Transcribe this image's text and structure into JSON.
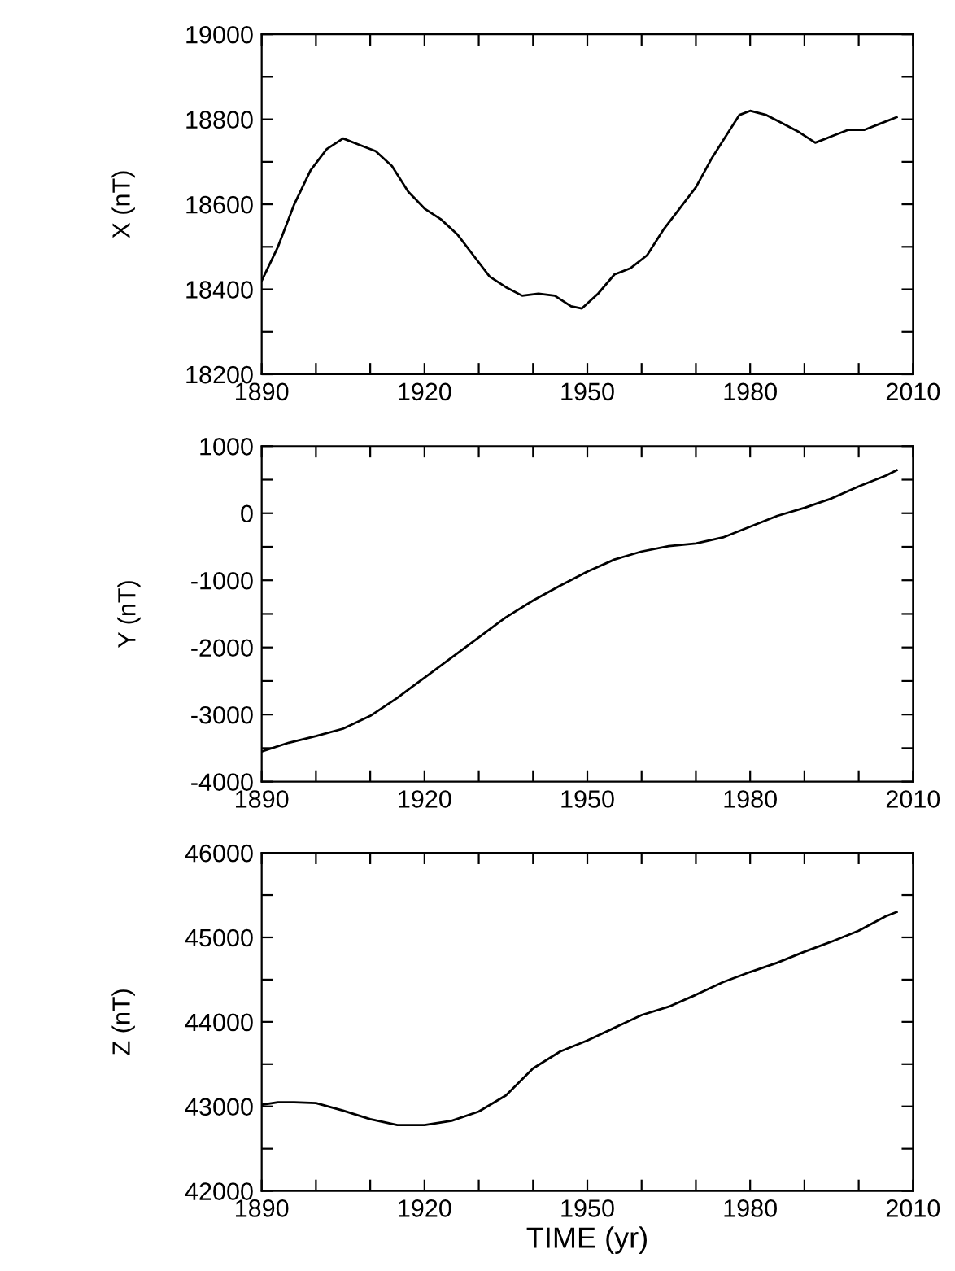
{
  "chart_data": [
    {
      "type": "line",
      "ylabel": "X (nT)",
      "x": [
        1890,
        1893,
        1896,
        1899,
        1902,
        1905,
        1908,
        1911,
        1914,
        1917,
        1920,
        1923,
        1926,
        1929,
        1932,
        1935,
        1938,
        1941,
        1944,
        1947,
        1949,
        1952,
        1955,
        1958,
        1961,
        1964,
        1967,
        1970,
        1973,
        1976,
        1978,
        1980,
        1983,
        1986,
        1989,
        1992,
        1995,
        1998,
        2001,
        2004,
        2007
      ],
      "series": [
        {
          "color": "#000000",
          "values": [
            18420,
            18500,
            18600,
            18680,
            18730,
            18755,
            18740,
            18725,
            18690,
            18630,
            18590,
            18565,
            18530,
            18480,
            18430,
            18405,
            18385,
            18390,
            18385,
            18360,
            18355,
            18390,
            18435,
            18450,
            18480,
            18540,
            18590,
            18640,
            18710,
            18770,
            18810,
            18820,
            18810,
            18790,
            18770,
            18745,
            18760,
            18775,
            18775,
            18790,
            18805
          ]
        }
      ],
      "xlim": [
        1890,
        2010
      ],
      "xticks": [
        1890,
        {
          "value": 1900,
          "label": null
        },
        {
          "value": 1910,
          "label": null
        },
        1920,
        {
          "value": 1930,
          "label": null
        },
        {
          "value": 1940,
          "label": null
        },
        1950,
        {
          "value": 1960,
          "label": null
        },
        {
          "value": 1970,
          "label": null
        },
        1980,
        {
          "value": 1990,
          "label": null
        },
        {
          "value": 2000,
          "label": null
        },
        2010
      ],
      "ylim": [
        18200,
        19000
      ],
      "yticks": [
        18200,
        {
          "value": 18300,
          "label": null
        },
        18400,
        {
          "value": 18500,
          "label": null
        },
        18600,
        {
          "value": 18700,
          "label": null
        },
        18800,
        {
          "value": 18900,
          "label": null
        },
        19000
      ],
      "grid": false,
      "legend": false,
      "marker": "none",
      "line_style": "solid"
    },
    {
      "type": "line",
      "ylabel": "Y (nT)",
      "x": [
        1890,
        1895,
        1900,
        1905,
        1910,
        1915,
        1920,
        1925,
        1930,
        1935,
        1940,
        1945,
        1950,
        1955,
        1960,
        1965,
        1970,
        1975,
        1980,
        1985,
        1990,
        1995,
        2000,
        2005,
        2007
      ],
      "series": [
        {
          "color": "#000000",
          "values": [
            -3550,
            -3420,
            -3320,
            -3210,
            -3020,
            -2750,
            -2450,
            -2150,
            -1850,
            -1550,
            -1300,
            -1080,
            -870,
            -690,
            -570,
            -490,
            -450,
            -360,
            -200,
            -40,
            80,
            220,
            400,
            560,
            640
          ]
        }
      ],
      "xlim": [
        1890,
        2010
      ],
      "xticks": [
        1890,
        {
          "value": 1900,
          "label": null
        },
        {
          "value": 1910,
          "label": null
        },
        1920,
        {
          "value": 1930,
          "label": null
        },
        {
          "value": 1940,
          "label": null
        },
        1950,
        {
          "value": 1960,
          "label": null
        },
        {
          "value": 1970,
          "label": null
        },
        1980,
        {
          "value": 1990,
          "label": null
        },
        {
          "value": 2000,
          "label": null
        },
        2010
      ],
      "ylim": [
        -4000,
        1000
      ],
      "yticks": [
        -4000,
        {
          "value": -3500,
          "label": null
        },
        -3000,
        {
          "value": -2500,
          "label": null
        },
        -2000,
        {
          "value": -1500,
          "label": null
        },
        -1000,
        {
          "value": -500,
          "label": null
        },
        0,
        {
          "value": 500,
          "label": null
        },
        1000
      ],
      "grid": false,
      "legend": false,
      "marker": "none",
      "line_style": "solid"
    },
    {
      "type": "line",
      "ylabel": "Z (nT)",
      "xlabel": "TIME (yr)",
      "x": [
        1890,
        1893,
        1896,
        1900,
        1905,
        1910,
        1915,
        1920,
        1925,
        1930,
        1935,
        1940,
        1945,
        1950,
        1955,
        1960,
        1965,
        1970,
        1975,
        1980,
        1985,
        1990,
        1995,
        2000,
        2005,
        2007
      ],
      "series": [
        {
          "color": "#000000",
          "values": [
            43020,
            43050,
            43050,
            43040,
            42950,
            42850,
            42780,
            42780,
            42830,
            42940,
            43130,
            43450,
            43650,
            43780,
            43930,
            44080,
            44180,
            44320,
            44470,
            44590,
            44700,
            44830,
            44950,
            45080,
            45250,
            45300
          ]
        }
      ],
      "xlim": [
        1890,
        2010
      ],
      "xticks": [
        1890,
        {
          "value": 1900,
          "label": null
        },
        {
          "value": 1910,
          "label": null
        },
        1920,
        {
          "value": 1930,
          "label": null
        },
        {
          "value": 1940,
          "label": null
        },
        1950,
        {
          "value": 1960,
          "label": null
        },
        {
          "value": 1970,
          "label": null
        },
        1980,
        {
          "value": 1990,
          "label": null
        },
        {
          "value": 2000,
          "label": null
        },
        2010
      ],
      "ylim": [
        42000,
        46000
      ],
      "yticks": [
        42000,
        {
          "value": 42500,
          "label": null
        },
        43000,
        {
          "value": 43500,
          "label": null
        },
        44000,
        {
          "value": 44500,
          "label": null
        },
        45000,
        {
          "value": 45500,
          "label": null
        },
        46000
      ],
      "grid": false,
      "legend": false,
      "marker": "none",
      "line_style": "solid"
    }
  ]
}
